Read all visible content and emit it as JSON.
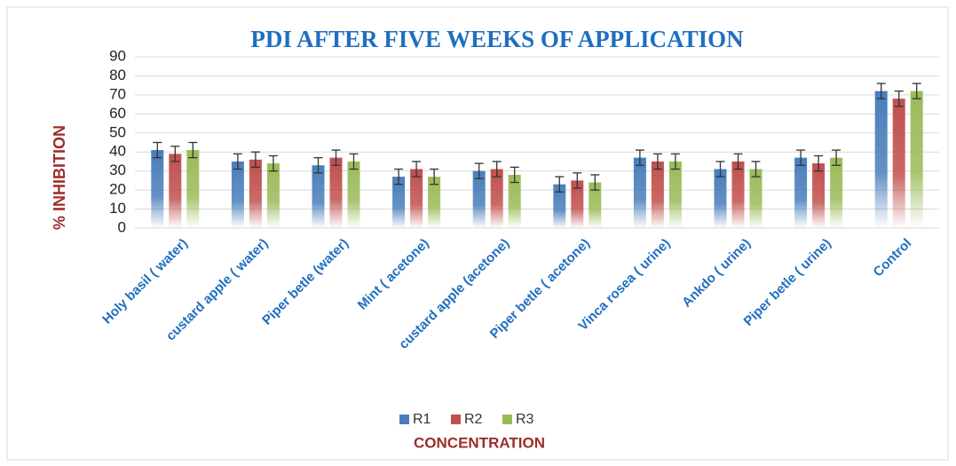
{
  "chart_data": {
    "type": "bar",
    "title": "PDI AFTER FIVE WEEKS OF APPLICATION",
    "y_label": "% INHIBITION",
    "x_label": "CONCENTRATION",
    "categories": [
      "Holy basil ( water)",
      "custard apple ( water)",
      "Piper betle (water)",
      "Mint ( acetone)",
      "custard apple (acetone)",
      "Piper betle ( acetone)",
      "Vinca rosea ( urine)",
      "Ankdo ( urine)",
      "Piper betle ( urine)",
      "Control"
    ],
    "series": [
      {
        "name": "R1",
        "color": "#4a7ebb",
        "values": [
          41,
          35,
          33,
          27,
          30,
          23,
          37,
          31,
          37,
          72
        ],
        "errors": [
          4,
          4,
          4,
          4,
          4,
          4,
          4,
          4,
          4,
          4
        ]
      },
      {
        "name": "R2",
        "color": "#c0504d",
        "values": [
          39,
          36,
          37,
          31,
          31,
          25,
          35,
          35,
          34,
          68
        ],
        "errors": [
          4,
          4,
          4,
          4,
          4,
          4,
          4,
          4,
          4,
          4
        ]
      },
      {
        "name": "R3",
        "color": "#9bbb59",
        "values": [
          41,
          34,
          35,
          27,
          28,
          24,
          35,
          31,
          37,
          72
        ],
        "errors": [
          4,
          4,
          4,
          4,
          4,
          4,
          4,
          4,
          4,
          4
        ]
      }
    ],
    "ylim": [
      0,
      90
    ],
    "yticks": [
      0,
      10,
      20,
      30,
      40,
      50,
      60,
      70,
      80,
      90
    ],
    "grid": true,
    "legend": "bottom"
  }
}
